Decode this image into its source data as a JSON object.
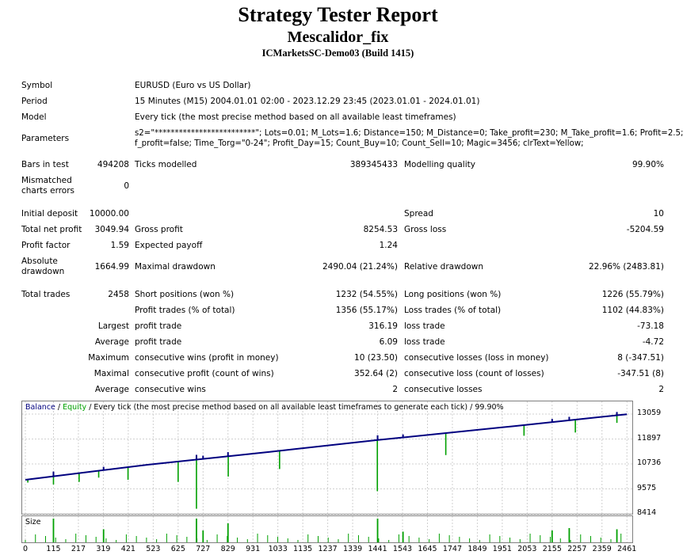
{
  "header": {
    "title": "Strategy Tester Report",
    "expert": "Mescalidor_fix",
    "server": "ICMarketsSC-Demo03 (Build 1415)"
  },
  "settings": {
    "symbol_label": "Symbol",
    "symbol": "EURUSD (Euro vs US Dollar)",
    "period_label": "Period",
    "period": "15 Minutes (M15) 2004.01.01 02:00 - 2023.12.29 23:45 (2023.01.01 - 2024.01.01)",
    "model_label": "Model",
    "model": "Every tick (the most precise method based on all available least timeframes)",
    "params_label": "Parameters",
    "params_line1": "s2=\"*************************\"; Lots=0.01; M_Lots=1.6; Distance=150; M_Distance=0; Take_profit=230; M_Take_profit=1.6; Profit=2.5;",
    "params_line2": "f_profit=false; Time_Torg=\"0-24\"; Profit_Day=15; Count_Buy=10; Count_Sell=10; Magic=3456; clrText=Yellow;"
  },
  "stats": {
    "bars_label": "Bars in test",
    "bars": "494208",
    "ticks_label": "Ticks modelled",
    "ticks": "389345433",
    "quality_label": "Modelling quality",
    "quality": "99.90%",
    "mismatch_label_1": "Mismatched",
    "mismatch_label_2": "charts errors",
    "mismatch": "0",
    "deposit_label": "Initial deposit",
    "deposit": "10000.00",
    "spread_label": "Spread",
    "spread": "10",
    "netprofit_label": "Total net profit",
    "netprofit": "3049.94",
    "grossprofit_label": "Gross profit",
    "grossprofit": "8254.53",
    "grossloss_label": "Gross loss",
    "grossloss": "-5204.59",
    "pf_label": "Profit factor",
    "pf": "1.59",
    "payoff_label": "Expected payoff",
    "payoff": "1.24",
    "absdd_label_1": "Absolute",
    "absdd_label_2": "drawdown",
    "absdd": "1664.99",
    "maxdd_label": "Maximal drawdown",
    "maxdd": "2490.04 (21.24%)",
    "reldd_label": "Relative drawdown",
    "reldd": "22.96% (2483.81)",
    "trades_label": "Total trades",
    "trades": "2458",
    "short_label": "Short positions (won %)",
    "short": "1232 (54.55%)",
    "long_label": "Long positions (won %)",
    "long": "1226 (55.79%)",
    "profittr_label": "Profit trades (% of total)",
    "profittr": "1356 (55.17%)",
    "losstr_label": "Loss trades (% of total)",
    "losstr": "1102 (44.83%)",
    "largest_label": "Largest",
    "largest_p_label": "profit trade",
    "largest_p": "316.19",
    "largest_l_label": "loss trade",
    "largest_l": "-73.18",
    "average_label": "Average",
    "average_p_label": "profit trade",
    "average_p": "6.09",
    "average_l_label": "loss trade",
    "average_l": "-4.72",
    "maximum_label": "Maximum",
    "max_cw_label": "consecutive wins (profit in money)",
    "max_cw": "10 (23.50)",
    "max_cl_label": "consecutive losses (loss in money)",
    "max_cl": "8 (-347.51)",
    "maximal_label": "Maximal",
    "mx_cp_label": "consecutive profit (count of wins)",
    "mx_cp": "352.64 (2)",
    "mx_cl_label": "consecutive loss (count of losses)",
    "mx_cl": "-347.51 (8)",
    "average2_label": "Average",
    "avg_cw_label": "consecutive wins",
    "avg_cw": "2",
    "avg_cl_label": "consecutive losses",
    "avg_cl": "2"
  },
  "chart_legend": {
    "balance": "Balance",
    "sep1": " / ",
    "equity": "Equity",
    "rest": " / Every tick (the most precise method based on all available least timeframes to generate each tick) / 99.90%"
  },
  "size_label": "Size",
  "colors": {
    "balance": "#00007f",
    "equity": "#00a000",
    "size": "#00a000",
    "grid": "#d0d0d0"
  },
  "chart_data": {
    "type": "line",
    "series": [
      {
        "name": "Balance"
      },
      {
        "name": "Equity"
      }
    ],
    "x_ticks": [
      "0",
      "115",
      "217",
      "319",
      "421",
      "523",
      "625",
      "727",
      "829",
      "931",
      "1033",
      "1135",
      "1237",
      "1339",
      "1441",
      "1543",
      "1645",
      "1747",
      "1849",
      "1951",
      "2053",
      "2155",
      "2257",
      "2359",
      "2461"
    ],
    "y_ticks": [
      "13059",
      "11897",
      "10736",
      "9575",
      "8414"
    ],
    "xlim": [
      0,
      2470
    ],
    "ylim": [
      8414,
      13059
    ],
    "balance_points": [
      [
        0,
        10000
      ],
      [
        500,
        10700
      ],
      [
        1000,
        11300
      ],
      [
        1441,
        11850
      ],
      [
        2000,
        12500
      ],
      [
        2461,
        13050
      ]
    ],
    "equity_drops": [
      [
        10,
        9870
      ],
      [
        115,
        9780
      ],
      [
        220,
        9900
      ],
      [
        300,
        10100
      ],
      [
        420,
        10000
      ],
      [
        625,
        9900
      ],
      [
        700,
        8650
      ],
      [
        830,
        10150
      ],
      [
        1040,
        10500
      ],
      [
        1440,
        9470
      ],
      [
        1720,
        11150
      ],
      [
        2040,
        12050
      ],
      [
        2250,
        12200
      ],
      [
        2420,
        12650
      ]
    ],
    "size_spikes": [
      [
        115,
        1.0
      ],
      [
        320,
        0.55
      ],
      [
        700,
        1.0
      ],
      [
        727,
        0.5
      ],
      [
        829,
        0.8
      ],
      [
        1441,
        1.0
      ],
      [
        1545,
        0.45
      ],
      [
        2155,
        0.5
      ],
      [
        2225,
        0.6
      ],
      [
        2420,
        0.55
      ]
    ]
  }
}
